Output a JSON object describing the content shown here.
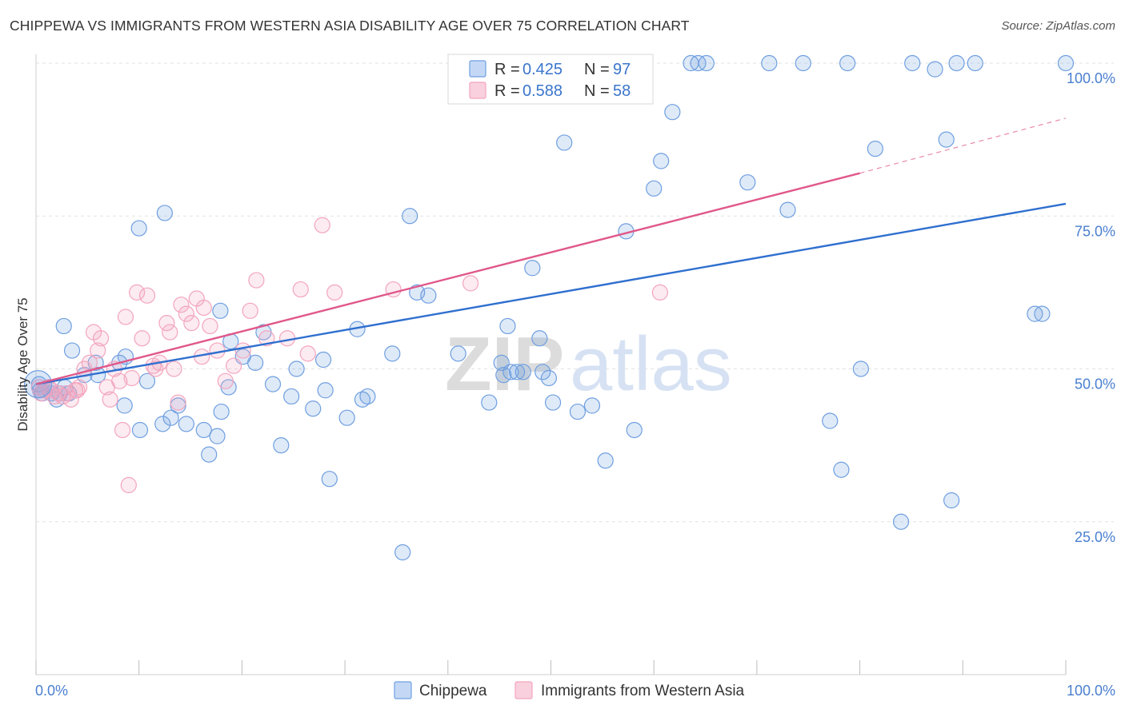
{
  "title": "CHIPPEWA VS IMMIGRANTS FROM WESTERN ASIA DISABILITY AGE OVER 75 CORRELATION CHART",
  "source": "Source: ZipAtlas.com",
  "watermark": {
    "zip": "ZIP",
    "atlas": "atlas"
  },
  "chart_data": {
    "type": "scatter",
    "title": "CHIPPEWA VS IMMIGRANTS FROM WESTERN ASIA DISABILITY AGE OVER 75 CORRELATION CHART",
    "xlabel": "",
    "ylabel": "Disability Age Over 75",
    "xlim": [
      0,
      100
    ],
    "ylim": [
      0,
      103
    ],
    "x_tick_labels": [
      "0.0%",
      "100.0%"
    ],
    "y_ticks": [
      {
        "value": 25,
        "label": "25.0%"
      },
      {
        "value": 50,
        "label": "50.0%"
      },
      {
        "value": 75,
        "label": "75.0%"
      },
      {
        "value": 100,
        "label": "100.0%"
      }
    ],
    "grid": "horizontal dashed",
    "legend_position": "top-center",
    "series": [
      {
        "name": "Chippewa",
        "color": "#6f9fe0",
        "line_color": "#2f6fcf",
        "R": "0.425",
        "N": "97",
        "trend": {
          "x": [
            0,
            100
          ],
          "y": [
            47.5,
            77
          ]
        },
        "points": [
          [
            0.3,
            47.5
          ],
          [
            0.4,
            46.5
          ],
          [
            0.6,
            46
          ],
          [
            0.8,
            46.5
          ],
          [
            1.2,
            47
          ],
          [
            1.5,
            46
          ],
          [
            2,
            45
          ],
          [
            2.3,
            46
          ],
          [
            2.8,
            47
          ],
          [
            3.2,
            46
          ],
          [
            2.7,
            57
          ],
          [
            3.5,
            53
          ],
          [
            4.7,
            49
          ],
          [
            5.8,
            51
          ],
          [
            6,
            49
          ],
          [
            8.6,
            44
          ],
          [
            8.1,
            51
          ],
          [
            8.7,
            52
          ],
          [
            10.1,
            40
          ],
          [
            10.8,
            48
          ],
          [
            12.3,
            41
          ],
          [
            13.1,
            42
          ],
          [
            13.8,
            44
          ],
          [
            14.6,
            41
          ],
          [
            16.3,
            40
          ],
          [
            16.8,
            36
          ],
          [
            17.6,
            39
          ],
          [
            18,
            43
          ],
          [
            18.7,
            47
          ],
          [
            17.9,
            59.5
          ],
          [
            18.9,
            54.5
          ],
          [
            20.1,
            52
          ],
          [
            21.3,
            51
          ],
          [
            22.1,
            56
          ],
          [
            23,
            47.5
          ],
          [
            23.8,
            37.5
          ],
          [
            24.8,
            45.5
          ],
          [
            25.3,
            50
          ],
          [
            26.9,
            43.5
          ],
          [
            27.9,
            51.5
          ],
          [
            28.1,
            46.5
          ],
          [
            28.5,
            32
          ],
          [
            30.2,
            42
          ],
          [
            31.2,
            56.5
          ],
          [
            31.7,
            45
          ],
          [
            32.2,
            45.5
          ],
          [
            34.6,
            52.5
          ],
          [
            35.6,
            20
          ],
          [
            36.3,
            75
          ],
          [
            37,
            62.5
          ],
          [
            38.1,
            62
          ],
          [
            41,
            52.5
          ],
          [
            44,
            44.5
          ],
          [
            45.2,
            51
          ],
          [
            45.4,
            49
          ],
          [
            45.8,
            57
          ],
          [
            46.1,
            49.5
          ],
          [
            46.7,
            49.5
          ],
          [
            47.3,
            49.5
          ],
          [
            48.2,
            66.5
          ],
          [
            48.9,
            55
          ],
          [
            49.2,
            49.5
          ],
          [
            49.8,
            48.5
          ],
          [
            50.2,
            44.5
          ],
          [
            51.3,
            87
          ],
          [
            52.6,
            43
          ],
          [
            54,
            44
          ],
          [
            55.3,
            35
          ],
          [
            57.3,
            72.5
          ],
          [
            58.1,
            40
          ],
          [
            60,
            79.5
          ],
          [
            60.7,
            84
          ],
          [
            61.8,
            92
          ],
          [
            63.6,
            100
          ],
          [
            64.3,
            100
          ],
          [
            65.1,
            100
          ],
          [
            69.1,
            80.5
          ],
          [
            71.2,
            100
          ],
          [
            73,
            76
          ],
          [
            74.5,
            100
          ],
          [
            77.1,
            41.5
          ],
          [
            78.2,
            33.5
          ],
          [
            78.8,
            100
          ],
          [
            80.1,
            50
          ],
          [
            81.5,
            86
          ],
          [
            84,
            25
          ],
          [
            85.1,
            100
          ],
          [
            87.3,
            99
          ],
          [
            88.4,
            87.5
          ],
          [
            88.9,
            28.5
          ],
          [
            89.4,
            100
          ],
          [
            91.2,
            100
          ],
          [
            97,
            59
          ],
          [
            97.7,
            59
          ],
          [
            100,
            100
          ],
          [
            10,
            73
          ],
          [
            12.5,
            75.5
          ]
        ]
      },
      {
        "name": "Immigrants from Western Asia",
        "color": "#f3a5bd",
        "line_color": "#e0588a",
        "R": "0.588",
        "N": "58",
        "trend": {
          "x": [
            0,
            80
          ],
          "y": [
            47.5,
            82
          ],
          "dash_to": [
            100,
            91
          ]
        },
        "points": [
          [
            0.3,
            47
          ],
          [
            0.5,
            46
          ],
          [
            0.8,
            46.5
          ],
          [
            1.2,
            47
          ],
          [
            1.5,
            46.5
          ],
          [
            1.8,
            45.5
          ],
          [
            2.2,
            46
          ],
          [
            2.6,
            45.5
          ],
          [
            3,
            46
          ],
          [
            3.4,
            45
          ],
          [
            3.8,
            46.5
          ],
          [
            4.2,
            47
          ],
          [
            4.7,
            50
          ],
          [
            5.2,
            51
          ],
          [
            5.6,
            56
          ],
          [
            6,
            53
          ],
          [
            6.3,
            55
          ],
          [
            6.9,
            47
          ],
          [
            7.2,
            45
          ],
          [
            7.6,
            50
          ],
          [
            8.1,
            48
          ],
          [
            8.4,
            40
          ],
          [
            8.7,
            58.5
          ],
          [
            9,
            31
          ],
          [
            9.3,
            48.5
          ],
          [
            9.8,
            62.5
          ],
          [
            10.3,
            55
          ],
          [
            10.8,
            62
          ],
          [
            11.4,
            50.5
          ],
          [
            11.6,
            50
          ],
          [
            12,
            51
          ],
          [
            12.7,
            57.5
          ],
          [
            13,
            56
          ],
          [
            13.4,
            50
          ],
          [
            13.8,
            44.5
          ],
          [
            14.1,
            60.5
          ],
          [
            14.6,
            59
          ],
          [
            15.1,
            57.5
          ],
          [
            15.6,
            61.5
          ],
          [
            16.1,
            52
          ],
          [
            16.3,
            60
          ],
          [
            16.9,
            57
          ],
          [
            17.6,
            53
          ],
          [
            18.4,
            48
          ],
          [
            19.2,
            50.5
          ],
          [
            20.1,
            53
          ],
          [
            20.8,
            59.5
          ],
          [
            21.4,
            64.5
          ],
          [
            22.4,
            55
          ],
          [
            24.4,
            55
          ],
          [
            25.7,
            63
          ],
          [
            26.4,
            52.5
          ],
          [
            27.8,
            73.5
          ],
          [
            29,
            62.5
          ],
          [
            34.7,
            63
          ],
          [
            42.2,
            64
          ],
          [
            60.6,
            62.5
          ],
          [
            4,
            46.5
          ]
        ]
      }
    ]
  }
}
